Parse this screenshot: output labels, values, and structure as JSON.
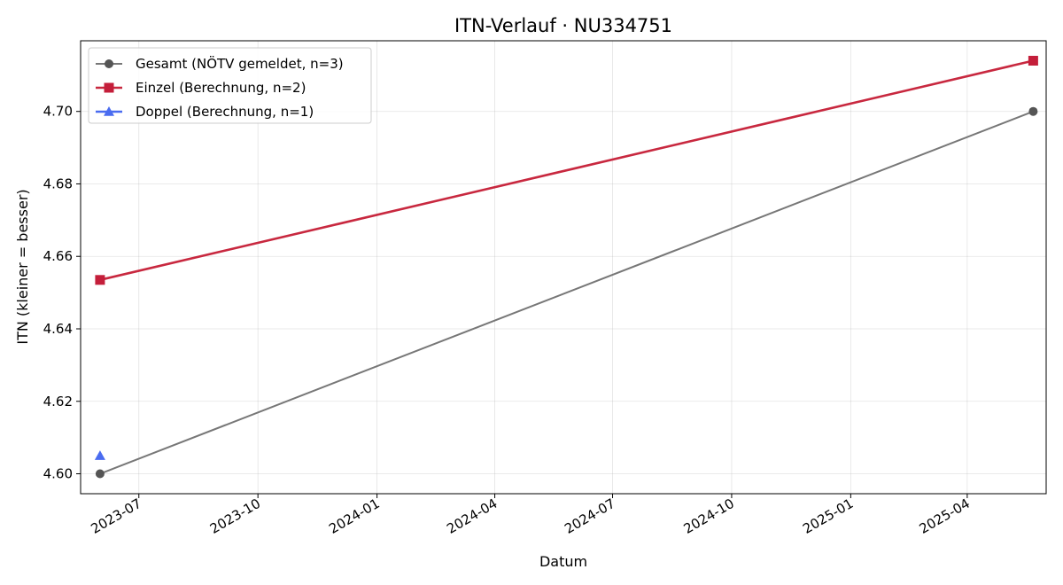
{
  "chart_data": {
    "type": "line",
    "title": "ITN-Verlauf · NU334751",
    "xlabel": "Datum",
    "ylabel": "ITN  (kleiner = besser)",
    "x_type": "date",
    "xlim": [
      "2023-05-17",
      "2025-06-01"
    ],
    "ylim": [
      4.5945,
      4.7195
    ],
    "x_ticks": [
      "2023-07-01",
      "2023-10-01",
      "2024-01-01",
      "2024-04-01",
      "2024-07-01",
      "2024-10-01",
      "2025-01-01",
      "2025-04-01"
    ],
    "x_tick_labels": [
      "2023-07",
      "2023-10",
      "2024-01",
      "2024-04",
      "2024-07",
      "2024-10",
      "2025-01",
      "2025-04"
    ],
    "y_ticks": [
      4.6,
      4.62,
      4.64,
      4.66,
      4.68,
      4.7
    ],
    "y_tick_labels": [
      "4.60",
      "4.62",
      "4.64",
      "4.66",
      "4.68",
      "4.70"
    ],
    "grid": true,
    "legend_position": "top-left",
    "series": [
      {
        "name": "Gesamt (NÖTV gemeldet, n=3)",
        "color": "#555555",
        "line_color": "#777777",
        "marker": "circle",
        "x": [
          "2023-06-01",
          "2025-05-22"
        ],
        "y": [
          4.6,
          4.7
        ]
      },
      {
        "name": "Einzel (Berechnung, n=2)",
        "color": "#c41e3a",
        "line_color": "#c8283f",
        "marker": "square",
        "x": [
          "2023-06-01",
          "2025-05-22"
        ],
        "y": [
          4.6535,
          4.714
        ]
      },
      {
        "name": "Doppel (Berechnung, n=1)",
        "color": "#4a6cf0",
        "line_color": "#4a6cf0",
        "marker": "triangle",
        "x": [
          "2023-06-01"
        ],
        "y": [
          4.605
        ]
      }
    ]
  }
}
